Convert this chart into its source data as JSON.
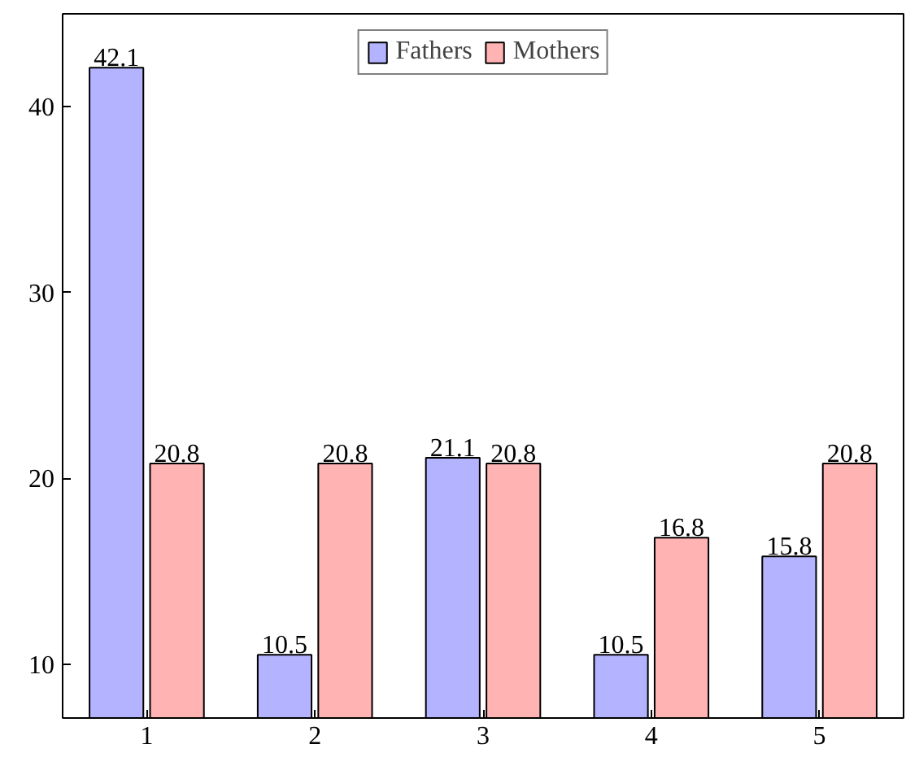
{
  "chart_data": {
    "type": "bar",
    "x": [
      1,
      2,
      3,
      4,
      5
    ],
    "series": [
      {
        "name": "Fathers",
        "color": "#b3b3ff",
        "values": [
          42.1,
          10.5,
          21.1,
          10.5,
          15.8
        ]
      },
      {
        "name": "Mothers",
        "color": "#ffb3b3",
        "values": [
          20.8,
          20.8,
          20.8,
          16.8,
          20.8
        ]
      }
    ],
    "xlim": [
      0.5,
      5.5
    ],
    "ylim": [
      7.1,
      45
    ],
    "xticks": [
      1,
      2,
      3,
      4,
      5
    ],
    "yticks": [
      10,
      20,
      30,
      40
    ],
    "data_labels": true,
    "legend": "top",
    "grid": false
  }
}
